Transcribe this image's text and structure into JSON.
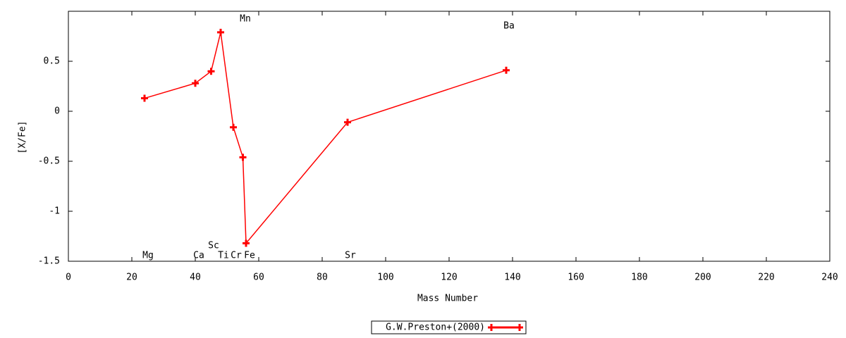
{
  "chart_data": {
    "type": "line",
    "x_label": "Mass Number",
    "y_label": "[X/Fe]",
    "x": [
      24,
      40,
      45,
      48,
      52,
      55,
      56,
      88,
      138
    ],
    "series": [
      {
        "name": "G.W.Preston+(2000)",
        "color": "#ff0000",
        "values": [
          0.13,
          0.28,
          0.4,
          0.79,
          -0.16,
          -0.46,
          -1.32,
          -0.11,
          0.41
        ]
      }
    ],
    "annotations": [
      "Mg",
      "Ca",
      "Sc",
      "Ti",
      "Cr",
      "Fe",
      "Sr",
      "Mn",
      "Ba"
    ],
    "xlim": [
      0,
      240
    ],
    "xticks": [
      0,
      20,
      40,
      60,
      80,
      100,
      120,
      140,
      160,
      180,
      200,
      220,
      240
    ],
    "ylim": [
      -1.5,
      1
    ],
    "yticks": [
      -1.5,
      -1,
      -0.5,
      0,
      0.5
    ],
    "legend": "bottom"
  }
}
